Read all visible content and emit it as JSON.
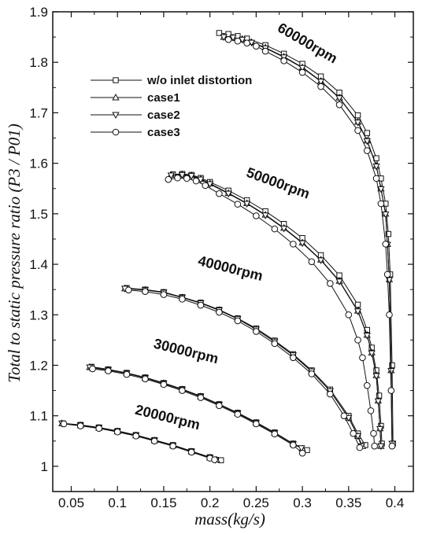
{
  "chart_data": {
    "type": "line",
    "xlabel": "mass(kg/s)",
    "ylabel": "Total to static pressure ratio (P3 / P01)",
    "xlim": [
      0.03,
      0.42
    ],
    "ylim": [
      0.95,
      1.9
    ],
    "x_ticks": [
      "0.05",
      "0.1",
      "0.15",
      "0.2",
      "0.25",
      "0.3",
      "0.35",
      "0.4"
    ],
    "y_ticks": [
      "1",
      "1.1",
      "1.2",
      "1.3",
      "1.4",
      "1.5",
      "1.6",
      "1.7",
      "1.8",
      "1.9"
    ],
    "grid": false,
    "legend_position": "upper-left",
    "legend": [
      {
        "label": "w/o inlet distortion",
        "marker": "square"
      },
      {
        "label": "case1",
        "marker": "triangle-up"
      },
      {
        "label": "case2",
        "marker": "triangle-down"
      },
      {
        "label": "case3",
        "marker": "circle"
      }
    ],
    "speed_lines": [
      {
        "label": "20000rpm",
        "series": [
          {
            "name": "w/o inlet distortion",
            "x": [
              0.041,
              0.06,
              0.08,
              0.1,
              0.12,
              0.14,
              0.16,
              0.18,
              0.2,
              0.212
            ],
            "y": [
              1.085,
              1.082,
              1.077,
              1.07,
              1.062,
              1.052,
              1.042,
              1.03,
              1.018,
              1.012
            ]
          },
          {
            "name": "case1",
            "x": [
              0.04,
              0.06,
              0.08,
              0.1,
              0.12,
              0.14,
              0.16,
              0.18,
              0.2,
              0.207
            ],
            "y": [
              1.085,
              1.081,
              1.076,
              1.069,
              1.061,
              1.051,
              1.041,
              1.029,
              1.017,
              1.013
            ]
          },
          {
            "name": "case2",
            "x": [
              0.04,
              0.06,
              0.08,
              0.1,
              0.12,
              0.14,
              0.16,
              0.18,
              0.2,
              0.206
            ],
            "y": [
              1.085,
              1.081,
              1.076,
              1.069,
              1.061,
              1.051,
              1.041,
              1.029,
              1.017,
              1.013
            ]
          },
          {
            "name": "case3",
            "x": [
              0.042,
              0.06,
              0.08,
              0.1,
              0.12,
              0.14,
              0.16,
              0.18,
              0.2,
              0.205
            ],
            "y": [
              1.084,
              1.08,
              1.075,
              1.068,
              1.06,
              1.05,
              1.04,
              1.028,
              1.016,
              1.013
            ]
          }
        ]
      },
      {
        "label": "30000rpm",
        "series": [
          {
            "name": "w/o inlet distortion",
            "x": [
              0.072,
              0.09,
              0.11,
              0.13,
              0.15,
              0.17,
              0.19,
              0.21,
              0.23,
              0.25,
              0.27,
              0.29,
              0.305
            ],
            "y": [
              1.197,
              1.192,
              1.185,
              1.176,
              1.165,
              1.153,
              1.139,
              1.123,
              1.106,
              1.087,
              1.067,
              1.045,
              1.032
            ]
          },
          {
            "name": "case1",
            "x": [
              0.07,
              0.09,
              0.11,
              0.13,
              0.15,
              0.17,
              0.19,
              0.21,
              0.23,
              0.25,
              0.27,
              0.29,
              0.3
            ],
            "y": [
              1.196,
              1.191,
              1.184,
              1.175,
              1.164,
              1.152,
              1.138,
              1.122,
              1.105,
              1.086,
              1.066,
              1.044,
              1.035
            ]
          },
          {
            "name": "case2",
            "x": [
              0.07,
              0.09,
              0.11,
              0.13,
              0.15,
              0.17,
              0.19,
              0.21,
              0.23,
              0.25,
              0.27,
              0.29,
              0.299
            ],
            "y": [
              1.196,
              1.191,
              1.184,
              1.175,
              1.164,
              1.152,
              1.138,
              1.122,
              1.105,
              1.086,
              1.066,
              1.044,
              1.036
            ]
          },
          {
            "name": "case3",
            "x": [
              0.073,
              0.09,
              0.11,
              0.13,
              0.15,
              0.17,
              0.19,
              0.21,
              0.23,
              0.25,
              0.27,
              0.29,
              0.3
            ],
            "y": [
              1.193,
              1.189,
              1.182,
              1.173,
              1.162,
              1.15,
              1.136,
              1.12,
              1.103,
              1.084,
              1.064,
              1.042,
              1.026
            ]
          }
        ]
      },
      {
        "label": "40000rpm",
        "series": [
          {
            "name": "w/o inlet distortion",
            "x": [
              0.11,
              0.13,
              0.15,
              0.17,
              0.19,
              0.21,
              0.23,
              0.25,
              0.27,
              0.29,
              0.31,
              0.33,
              0.35,
              0.36,
              0.368
            ],
            "y": [
              1.353,
              1.35,
              1.345,
              1.335,
              1.324,
              1.31,
              1.293,
              1.273,
              1.249,
              1.222,
              1.19,
              1.152,
              1.1,
              1.065,
              1.042
            ]
          },
          {
            "name": "case1",
            "x": [
              0.108,
              0.13,
              0.15,
              0.17,
              0.19,
              0.21,
              0.23,
              0.25,
              0.27,
              0.29,
              0.31,
              0.33,
              0.35,
              0.36,
              0.365
            ],
            "y": [
              1.352,
              1.349,
              1.344,
              1.334,
              1.323,
              1.309,
              1.292,
              1.271,
              1.247,
              1.22,
              1.188,
              1.149,
              1.096,
              1.06,
              1.04
            ]
          },
          {
            "name": "case2",
            "x": [
              0.108,
              0.13,
              0.15,
              0.17,
              0.19,
              0.21,
              0.23,
              0.25,
              0.27,
              0.29,
              0.31,
              0.33,
              0.35,
              0.36,
              0.364
            ],
            "y": [
              1.352,
              1.349,
              1.344,
              1.334,
              1.323,
              1.309,
              1.292,
              1.271,
              1.247,
              1.22,
              1.188,
              1.149,
              1.096,
              1.06,
              1.04
            ]
          },
          {
            "name": "case3",
            "x": [
              0.112,
              0.13,
              0.15,
              0.17,
              0.19,
              0.21,
              0.23,
              0.25,
              0.27,
              0.29,
              0.31,
              0.33,
              0.345,
              0.355,
              0.362
            ],
            "y": [
              1.349,
              1.346,
              1.34,
              1.331,
              1.319,
              1.305,
              1.288,
              1.267,
              1.243,
              1.215,
              1.183,
              1.143,
              1.1,
              1.065,
              1.037
            ]
          }
        ]
      },
      {
        "label": "50000rpm",
        "series": [
          {
            "name": "w/o inlet distortion",
            "x": [
              0.16,
              0.17,
              0.18,
              0.19,
              0.2,
              0.22,
              0.24,
              0.26,
              0.28,
              0.3,
              0.32,
              0.34,
              0.36,
              0.37,
              0.375,
              0.38,
              0.383,
              0.385,
              0.386
            ],
            "y": [
              1.578,
              1.579,
              1.577,
              1.571,
              1.563,
              1.546,
              1.527,
              1.505,
              1.48,
              1.452,
              1.418,
              1.378,
              1.32,
              1.27,
              1.235,
              1.19,
              1.14,
              1.08,
              1.045
            ]
          },
          {
            "name": "case1",
            "x": [
              0.158,
              0.17,
              0.18,
              0.19,
              0.2,
              0.22,
              0.24,
              0.26,
              0.28,
              0.3,
              0.32,
              0.34,
              0.36,
              0.37,
              0.375,
              0.38,
              0.382,
              0.384,
              0.385
            ],
            "y": [
              1.577,
              1.578,
              1.576,
              1.569,
              1.56,
              1.541,
              1.521,
              1.498,
              1.472,
              1.443,
              1.409,
              1.367,
              1.308,
              1.26,
              1.225,
              1.18,
              1.13,
              1.075,
              1.04
            ]
          },
          {
            "name": "case2",
            "x": [
              0.158,
              0.17,
              0.18,
              0.19,
              0.2,
              0.22,
              0.24,
              0.26,
              0.28,
              0.3,
              0.32,
              0.34,
              0.36,
              0.37,
              0.375,
              0.38,
              0.382,
              0.384,
              0.385
            ],
            "y": [
              1.576,
              1.577,
              1.575,
              1.568,
              1.559,
              1.54,
              1.52,
              1.497,
              1.471,
              1.442,
              1.408,
              1.366,
              1.307,
              1.259,
              1.224,
              1.179,
              1.129,
              1.074,
              1.04
            ]
          },
          {
            "name": "case3",
            "x": [
              0.155,
              0.165,
              0.175,
              0.185,
              0.195,
              0.21,
              0.23,
              0.25,
              0.27,
              0.29,
              0.31,
              0.33,
              0.35,
              0.36,
              0.365,
              0.37,
              0.374,
              0.377,
              0.378
            ],
            "y": [
              1.568,
              1.571,
              1.57,
              1.565,
              1.556,
              1.54,
              1.519,
              1.496,
              1.47,
              1.44,
              1.405,
              1.362,
              1.3,
              1.25,
              1.215,
              1.16,
              1.11,
              1.065,
              1.04
            ]
          }
        ]
      },
      {
        "label": "60000rpm",
        "series": [
          {
            "name": "w/o inlet distortion",
            "x": [
              0.21,
              0.22,
              0.23,
              0.24,
              0.26,
              0.28,
              0.3,
              0.32,
              0.34,
              0.36,
              0.37,
              0.38,
              0.385,
              0.39,
              0.393,
              0.395,
              0.397,
              0.398
            ],
            "y": [
              1.858,
              1.856,
              1.852,
              1.847,
              1.834,
              1.817,
              1.797,
              1.772,
              1.74,
              1.695,
              1.66,
              1.61,
              1.57,
              1.52,
              1.46,
              1.38,
              1.2,
              1.045
            ]
          },
          {
            "name": "case1",
            "x": [
              0.215,
              0.225,
              0.235,
              0.245,
              0.26,
              0.28,
              0.3,
              0.32,
              0.34,
              0.36,
              0.37,
              0.38,
              0.385,
              0.39,
              0.392,
              0.394,
              0.396,
              0.397
            ],
            "y": [
              1.85,
              1.849,
              1.846,
              1.84,
              1.829,
              1.811,
              1.79,
              1.763,
              1.73,
              1.682,
              1.645,
              1.595,
              1.55,
              1.5,
              1.44,
              1.37,
              1.19,
              1.045
            ]
          },
          {
            "name": "case2",
            "x": [
              0.215,
              0.225,
              0.235,
              0.245,
              0.26,
              0.28,
              0.3,
              0.32,
              0.34,
              0.36,
              0.37,
              0.38,
              0.385,
              0.39,
              0.392,
              0.394,
              0.396,
              0.397
            ],
            "y": [
              1.85,
              1.849,
              1.845,
              1.839,
              1.828,
              1.81,
              1.789,
              1.762,
              1.729,
              1.681,
              1.644,
              1.594,
              1.549,
              1.499,
              1.439,
              1.369,
              1.189,
              1.045
            ]
          },
          {
            "name": "case3",
            "x": [
              0.22,
              0.23,
              0.24,
              0.25,
              0.26,
              0.28,
              0.3,
              0.32,
              0.34,
              0.36,
              0.37,
              0.38,
              0.385,
              0.39,
              0.392,
              0.394,
              0.396,
              0.397
            ],
            "y": [
              1.845,
              1.842,
              1.838,
              1.832,
              1.822,
              1.803,
              1.78,
              1.752,
              1.716,
              1.665,
              1.625,
              1.57,
              1.52,
              1.44,
              1.38,
              1.3,
              1.15,
              1.04
            ]
          }
        ]
      }
    ]
  }
}
